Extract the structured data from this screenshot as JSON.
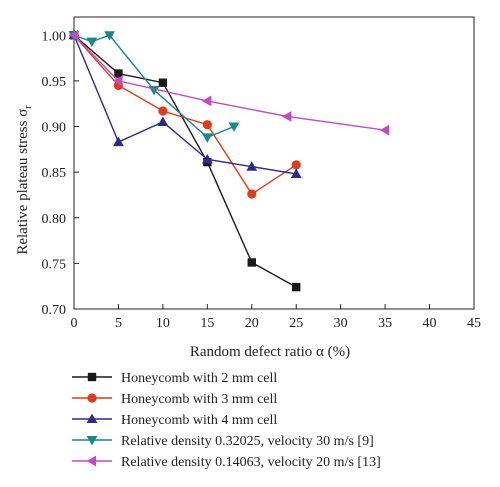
{
  "chart_data": {
    "type": "line",
    "xlabel": "Random defect ratio α (%)",
    "ylabel": "Relative plateau stress σ",
    "ylabel_sub": "r",
    "xlim": [
      0,
      45
    ],
    "ylim": [
      0.7,
      1.02
    ],
    "x_ticks": [
      0,
      5,
      10,
      15,
      20,
      25,
      30,
      35,
      40,
      45
    ],
    "y_ticks": [
      0.7,
      0.75,
      0.8,
      0.85,
      0.9,
      0.95,
      1.0
    ],
    "grid": false,
    "legend_position": "below",
    "series": [
      {
        "name": "Honeycomb with 2 mm cell",
        "color": "#1a1a1a",
        "marker": "square",
        "points": [
          [
            0,
            1.0
          ],
          [
            5,
            0.958
          ],
          [
            10,
            0.948
          ],
          [
            15,
            0.861
          ],
          [
            20,
            0.751
          ],
          [
            25,
            0.724
          ]
        ]
      },
      {
        "name": "Honeycomb with 3 mm cell",
        "color": "#e03b1c",
        "marker": "circle",
        "points": [
          [
            0,
            1.0
          ],
          [
            5,
            0.945
          ],
          [
            10,
            0.917
          ],
          [
            15,
            0.902
          ],
          [
            20,
            0.826
          ],
          [
            25,
            0.858
          ]
        ]
      },
      {
        "name": "Honeycomb with 4 mm cell",
        "color": "#2e2a8c",
        "marker": "triangle-up",
        "points": [
          [
            0,
            1.0
          ],
          [
            5,
            0.883
          ],
          [
            10,
            0.905
          ],
          [
            15,
            0.864
          ],
          [
            20,
            0.856
          ],
          [
            25,
            0.848
          ]
        ]
      },
      {
        "name": "Relative density 0.32025, velocity 30 m/s [9]",
        "color": "#17898a",
        "marker": "triangle-down",
        "points": [
          [
            0,
            1.0
          ],
          [
            2,
            0.993
          ],
          [
            4,
            1.0
          ],
          [
            9,
            0.94
          ],
          [
            15,
            0.888
          ],
          [
            18,
            0.9
          ]
        ]
      },
      {
        "name": "Relative density 0.14063, velocity 20 m/s [13]",
        "color": "#c24bc2",
        "marker": "triangle-left",
        "points": [
          [
            0,
            1.0
          ],
          [
            5,
            0.95
          ],
          [
            15,
            0.928
          ],
          [
            24,
            0.911
          ],
          [
            35,
            0.896
          ]
        ]
      }
    ]
  }
}
